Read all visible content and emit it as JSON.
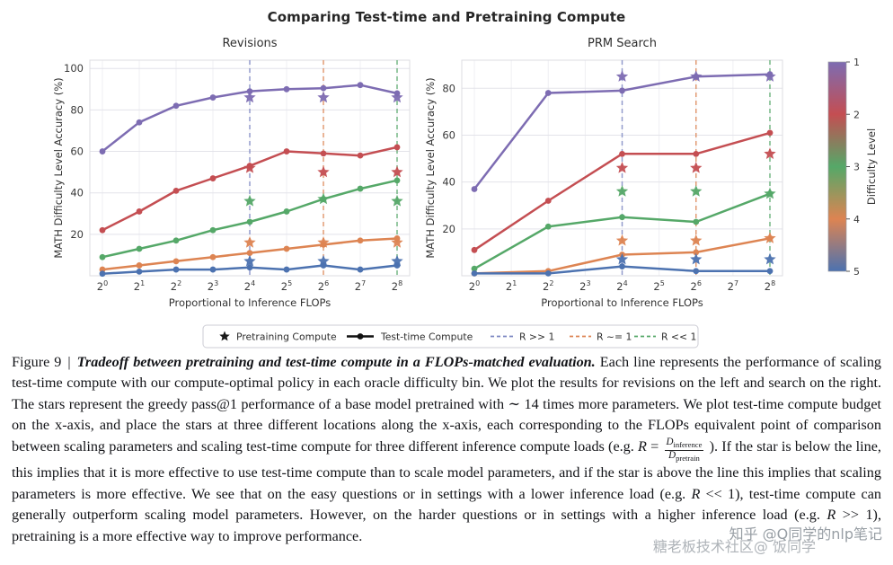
{
  "figure": {
    "title": "Comparing Test-time and Pretraining Compute"
  },
  "chart_data": [
    {
      "type": "line",
      "title": "Revisions",
      "xlabel": "Proportional to Inference FLOPs",
      "ylabel": "MATH Difficulty Level Accuracy (%)",
      "x_tick_labels": [
        "2^0",
        "2^1",
        "2^2",
        "2^3",
        "2^4",
        "2^5",
        "2^6",
        "2^7",
        "2^8"
      ],
      "ylim": [
        0,
        104
      ],
      "yticks": [
        20,
        40,
        60,
        80,
        100
      ],
      "grid": true,
      "vlines": [
        {
          "x": 4,
          "color": "#7b86c2",
          "label": "R >> 1"
        },
        {
          "x": 6,
          "color": "#dd8452",
          "label": "R ~= 1"
        },
        {
          "x": 8,
          "color": "#55a868",
          "label": "R << 1"
        }
      ],
      "series": [
        {
          "name": "Difficulty 1",
          "color": "#7d6cb2",
          "x": [
            0,
            1,
            2,
            3,
            4,
            5,
            6,
            7,
            8
          ],
          "y": [
            60,
            74,
            82,
            86,
            89,
            90,
            90.5,
            92,
            88
          ],
          "stars": {
            "x": [
              4,
              6,
              8
            ],
            "y": [
              86,
              86,
              86
            ]
          }
        },
        {
          "name": "Difficulty 2",
          "color": "#c44e52",
          "x": [
            0,
            1,
            2,
            3,
            4,
            5,
            6,
            7,
            8
          ],
          "y": [
            22,
            31,
            41,
            47,
            53,
            60,
            59,
            58,
            62
          ],
          "stars": {
            "x": [
              4,
              6,
              8
            ],
            "y": [
              52,
              50,
              50
            ]
          }
        },
        {
          "name": "Difficulty 3",
          "color": "#55a868",
          "x": [
            0,
            1,
            2,
            3,
            4,
            5,
            6,
            7,
            8
          ],
          "y": [
            9,
            13,
            17,
            22,
            26,
            31,
            37,
            42,
            46
          ],
          "stars": {
            "x": [
              4,
              6,
              8
            ],
            "y": [
              36,
              37,
              36
            ]
          }
        },
        {
          "name": "Difficulty 4",
          "color": "#dd8452",
          "x": [
            0,
            1,
            2,
            3,
            4,
            5,
            6,
            7,
            8
          ],
          "y": [
            3,
            5,
            7,
            9,
            11,
            13,
            15,
            17,
            18
          ],
          "stars": {
            "x": [
              4,
              6,
              8
            ],
            "y": [
              16,
              16,
              16
            ]
          }
        },
        {
          "name": "Difficulty 5",
          "color": "#4c72b0",
          "x": [
            0,
            1,
            2,
            3,
            4,
            5,
            6,
            7,
            8
          ],
          "y": [
            1,
            2,
            3,
            3,
            4,
            3,
            5,
            3,
            5
          ],
          "stars": {
            "x": [
              4,
              6,
              8
            ],
            "y": [
              7,
              7,
              7
            ]
          }
        }
      ]
    },
    {
      "type": "line",
      "title": "PRM Search",
      "xlabel": "Proportional to Inference FLOPs",
      "ylabel": "MATH Difficulty Level Accuracy (%)",
      "x_tick_labels": [
        "2^0",
        "2^1",
        "2^2",
        "2^3",
        "2^4",
        "2^5",
        "2^6",
        "2^7",
        "2^8"
      ],
      "ylim": [
        0,
        92
      ],
      "yticks": [
        20,
        40,
        60,
        80
      ],
      "grid": true,
      "vlines": [
        {
          "x": 4,
          "color": "#7b86c2",
          "label": "R >> 1"
        },
        {
          "x": 6,
          "color": "#dd8452",
          "label": "R ~= 1"
        },
        {
          "x": 8,
          "color": "#55a868",
          "label": "R << 1"
        }
      ],
      "series": [
        {
          "name": "Difficulty 1",
          "color": "#7d6cb2",
          "x": [
            0,
            2,
            4,
            6,
            8
          ],
          "y": [
            37,
            78,
            79,
            85,
            86
          ],
          "stars": {
            "x": [
              4,
              6,
              8
            ],
            "y": [
              85,
              85,
              85
            ]
          }
        },
        {
          "name": "Difficulty 2",
          "color": "#c44e52",
          "x": [
            0,
            2,
            4,
            6,
            8
          ],
          "y": [
            11,
            32,
            52,
            52,
            61
          ],
          "stars": {
            "x": [
              4,
              6,
              8
            ],
            "y": [
              46,
              46,
              52
            ]
          }
        },
        {
          "name": "Difficulty 3",
          "color": "#55a868",
          "x": [
            0,
            2,
            4,
            6,
            8
          ],
          "y": [
            3,
            21,
            25,
            23,
            35
          ],
          "stars": {
            "x": [
              4,
              6,
              8
            ],
            "y": [
              36,
              36,
              35
            ]
          }
        },
        {
          "name": "Difficulty 4",
          "color": "#dd8452",
          "x": [
            0,
            2,
            4,
            6,
            8
          ],
          "y": [
            1,
            2,
            9,
            10,
            16
          ],
          "stars": {
            "x": [
              4,
              6,
              8
            ],
            "y": [
              15,
              15,
              16
            ]
          }
        },
        {
          "name": "Difficulty 5",
          "color": "#4c72b0",
          "x": [
            0,
            2,
            4,
            6,
            8
          ],
          "y": [
            1,
            1,
            4,
            2,
            2
          ],
          "stars": {
            "x": [
              4,
              6,
              8
            ],
            "y": [
              7,
              7,
              7
            ]
          }
        }
      ]
    }
  ],
  "colorbar": {
    "label": "Difficulty Level",
    "ticks": [
      "1",
      "2",
      "3",
      "4",
      "5"
    ],
    "colors": [
      "#7d6cb2",
      "#c44e52",
      "#55a868",
      "#dd8452",
      "#4c72b0"
    ]
  },
  "legend": {
    "items": [
      {
        "marker": "star",
        "color": "#1a1a1a",
        "label": "Pretraining Compute"
      },
      {
        "marker": "line-dot",
        "color": "#111111",
        "label": "Test-time Compute"
      },
      {
        "marker": "dashed",
        "color": "#7b86c2",
        "label": "R >> 1"
      },
      {
        "marker": "dashed",
        "color": "#dd8452",
        "label": "R ~= 1"
      },
      {
        "marker": "dashed",
        "color": "#55a868",
        "label": "R << 1"
      }
    ]
  },
  "caption": {
    "segments": [
      {
        "s": "label",
        "t": "Figure 9"
      },
      {
        "s": "bar",
        "t": "|"
      },
      {
        "s": "lead",
        "t": "Tradeoff between pretraining and test-time compute in a FLOPs-matched evaluation."
      },
      {
        "s": "plain",
        "t": " Each line represents the performance of scaling test-time compute with our compute-optimal policy in each oracle difficulty bin. We plot the results for revisions on the left and search on the right. The stars represent the greedy pass@1 performance of a base model pretrained with ∼ 14 times more parameters. We plot test-time compute budget on the x-axis, and place the stars at three different locations along the x-axis, each corresponding to the FLOPs equivalent point of comparison between scaling parameters and scaling test-time compute for three different inference compute loads (e.g. "
      },
      {
        "s": "var",
        "t": "R"
      },
      {
        "s": "plain",
        "t": " = "
      },
      {
        "s": "frac",
        "num_var": "D",
        "num_sub": "inference",
        "den_var": "D",
        "den_sub": "pretrain"
      },
      {
        "s": "plain",
        "t": " ). If the star is below the line, this implies that it is more effective to use test-time compute than to scale model parameters, and if the star is above the line this implies that scaling parameters is more effective. We see that on the easy questions or in settings with a lower inference load (e.g. "
      },
      {
        "s": "var",
        "t": "R"
      },
      {
        "s": "plain",
        "t": " << 1), test-time compute can generally outperform scaling model parameters. However, on the harder questions or in settings with a higher inference load (e.g. "
      },
      {
        "s": "var",
        "t": "R"
      },
      {
        "s": "plain",
        "t": " >> 1), pretraining is a more effective way to improve performance."
      }
    ]
  },
  "watermarks": [
    {
      "text": "知乎 @Q同学的nlp笔记"
    },
    {
      "text": "糖老板技术社区@ 饭同学"
    }
  ]
}
